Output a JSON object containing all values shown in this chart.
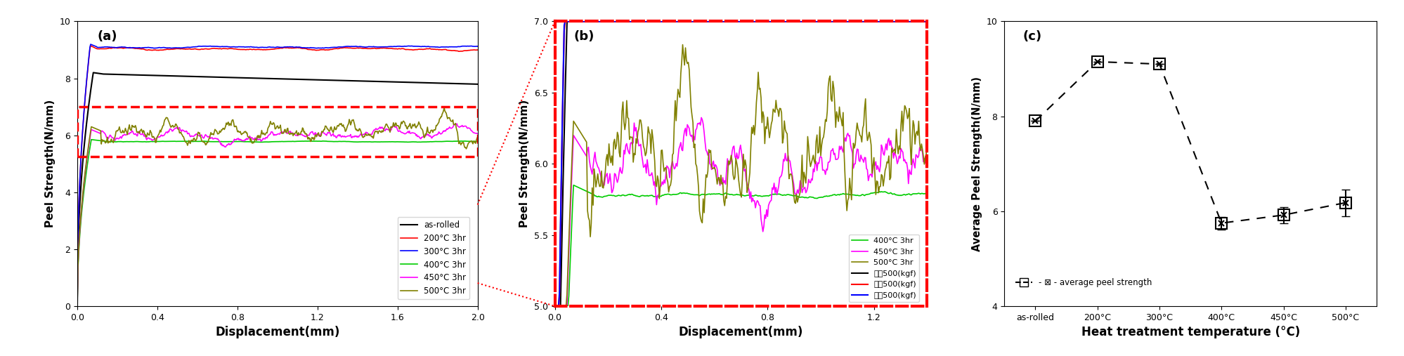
{
  "panel_a": {
    "label": "(a)",
    "xlabel": "Displacement(mm)",
    "ylabel": "Peel Strength(N/mm)",
    "xlim": [
      0,
      2.0
    ],
    "ylim": [
      0,
      10
    ],
    "xticks": [
      0.0,
      0.4,
      0.8,
      1.2,
      1.6,
      2.0
    ],
    "yticks": [
      0,
      2,
      4,
      6,
      8,
      10
    ],
    "rect_y1": 5.25,
    "rect_y2": 7.0
  },
  "panel_b": {
    "label": "(b)",
    "xlabel": "Displacement(mm)",
    "ylabel": "Peel Strength(N/mm)",
    "xlim": [
      0,
      1.4
    ],
    "ylim": [
      5.0,
      7.0
    ],
    "xticks": [
      0.0,
      0.4,
      0.8,
      1.2
    ],
    "yticks": [
      5.0,
      5.5,
      6.0,
      6.5,
      7.0
    ]
  },
  "panel_c": {
    "label": "(c)",
    "xlabel": "Heat treatment temperature (°C)",
    "ylabel": "Average Peel Strength(N/mm)",
    "xlim": [
      -0.5,
      5.5
    ],
    "ylim": [
      4,
      10
    ],
    "yticks": [
      4,
      6,
      8,
      10
    ],
    "x_labels": [
      "as-rolled",
      "200°C",
      "300°C",
      "400°C",
      "450°C",
      "500°C"
    ],
    "x_vals": [
      0,
      1,
      2,
      3,
      4,
      5
    ],
    "y_vals": [
      7.9,
      9.15,
      9.1,
      5.75,
      5.92,
      6.18
    ],
    "y_err": [
      0.0,
      0.0,
      0.0,
      0.13,
      0.17,
      0.28
    ]
  }
}
